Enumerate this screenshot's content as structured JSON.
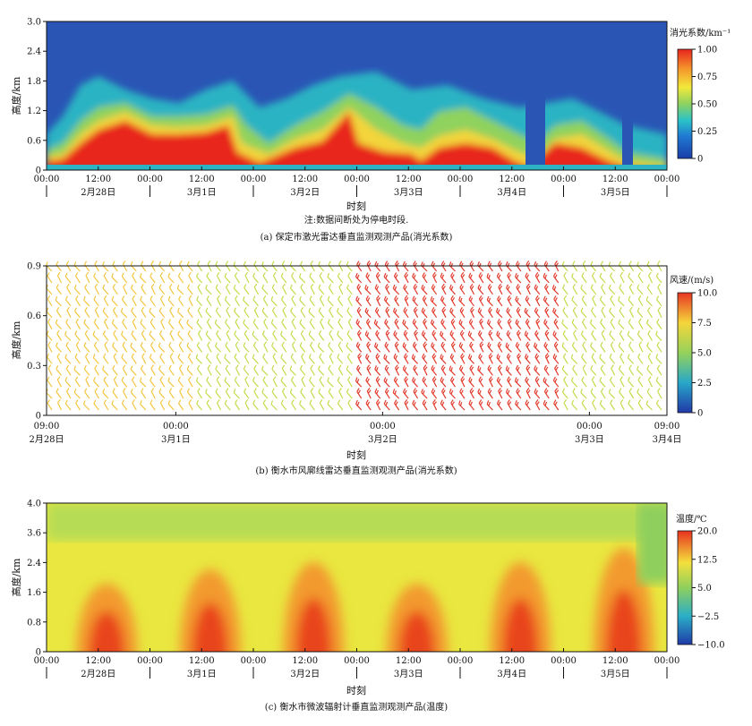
{
  "chart_data": [
    {
      "type": "heatmap",
      "panel": "a",
      "ylabel": "高度/km",
      "xlabel": "时刻",
      "caption": "(a)  保定市激光雷达垂直监测观测产品(消光系数)",
      "note": "注:数据间断处为停电时段.",
      "colorbar_title": "消光系数/km⁻¹",
      "colorbar_ticks": [
        "1.00",
        "0.75",
        "0.50",
        "0.25",
        "0"
      ],
      "ylim": [
        0,
        3.0
      ],
      "y_ticks": [
        "3.0",
        "2.4",
        "1.8",
        "1.2",
        "0.6",
        "0"
      ],
      "x_ticks": [
        "00:00",
        "12:00",
        "00:00",
        "12:00",
        "00:00",
        "12:00",
        "00:00",
        "12:00",
        "00:00",
        "12:00",
        "00:00",
        "12:00",
        "00:00"
      ],
      "dates": [
        "2月28日",
        "3月1日",
        "3月2日",
        "3月3日",
        "3月4日",
        "3月5日"
      ],
      "time_range_hours": [
        0,
        144
      ],
      "data_gaps_hours": [
        [
          112.5,
          116.5
        ],
        [
          134.5,
          137.0
        ],
        [
          141.5,
          144
        ]
      ],
      "boundary_layer_top_km": [
        {
          "hour": 0,
          "value": 0.3
        },
        {
          "hour": 8,
          "value": 0.8
        },
        {
          "hour": 14,
          "value": 1.3
        },
        {
          "hour": 22,
          "value": 1.1
        },
        {
          "hour": 30,
          "value": 0.6
        },
        {
          "hour": 38,
          "value": 1.2
        },
        {
          "hour": 46,
          "value": 0.4
        },
        {
          "hour": 60,
          "value": 0.8
        },
        {
          "hour": 70,
          "value": 1.3
        },
        {
          "hour": 82,
          "value": 0.6
        },
        {
          "hour": 94,
          "value": 0.9
        },
        {
          "hour": 108,
          "value": 0.4
        },
        {
          "hour": 120,
          "value": 0.8
        },
        {
          "hour": 132,
          "value": 0.5
        }
      ]
    },
    {
      "type": "wind_barbs",
      "panel": "b",
      "ylabel": "高度/km",
      "xlabel": "时刻",
      "caption": "(b)  衡水市风廓线雷达垂直监测观测产品(消光系数)",
      "colorbar_title": "风速/(m/s)",
      "colorbar_ticks": [
        "10.0",
        "7.5",
        "5.0",
        "2.5",
        "0"
      ],
      "ylim": [
        0,
        0.9
      ],
      "y_ticks": [
        "0.9",
        "0.6",
        "0.3",
        "0"
      ],
      "x_ticks": [
        {
          "time": "09:00",
          "date": "2月28日"
        },
        {
          "time": "00:00",
          "date": "3月1日"
        },
        {
          "time": "00:00",
          "date": "3月2日"
        },
        {
          "time": "00:00",
          "date": "3月3日"
        },
        {
          "time": "09:00",
          "date": "3月4日"
        }
      ],
      "time_range_hours": [
        0,
        72
      ],
      "wind_speed_regimes": [
        {
          "from_hour": 0,
          "to_hour": 18,
          "speed_ms": 6.5
        },
        {
          "from_hour": 18,
          "to_hour": 36,
          "speed_ms": 5.0
        },
        {
          "from_hour": 36,
          "to_hour": 60,
          "speed_ms": 9.5
        },
        {
          "from_hour": 60,
          "to_hour": 72,
          "speed_ms": 4.5
        }
      ]
    },
    {
      "type": "heatmap",
      "panel": "c",
      "ylabel": "高度/km",
      "xlabel": "时刻",
      "caption": "(c)  衡水市微波辐射计垂直监测观测产品(温度)",
      "colorbar_title": "温度/℃",
      "colorbar_ticks": [
        "20.0",
        "12.5",
        "5.0",
        "−2.5",
        "−10.0"
      ],
      "ylim": [
        0,
        4.0
      ],
      "y_ticks": [
        "4.0",
        "3.6",
        "2.4",
        "1.6",
        "0.8",
        "0"
      ],
      "x_ticks": [
        "00:00",
        "12:00",
        "00:00",
        "12:00",
        "00:00",
        "12:00",
        "00:00",
        "12:00",
        "00:00",
        "12:00",
        "00:00",
        "12:00",
        "00:00"
      ],
      "dates": [
        "2月28日",
        "3月1日",
        "3月2日",
        "3月3日",
        "3月4日",
        "3月5日"
      ],
      "time_range_hours": [
        0,
        144
      ],
      "daily_max_temp_c": [
        {
          "hour": 14,
          "value": 14
        },
        {
          "hour": 38,
          "value": 16
        },
        {
          "hour": 62,
          "value": 17
        },
        {
          "hour": 86,
          "value": 14
        },
        {
          "hour": 110,
          "value": 17
        },
        {
          "hour": 134,
          "value": 19
        }
      ]
    }
  ],
  "colors": {
    "jet": [
      "#00007f",
      "#0000ff",
      "#00a0ff",
      "#00ffff",
      "#7fff7f",
      "#ffff00",
      "#ff7f00",
      "#ff0000",
      "#7f0000"
    ],
    "axis": "#111111"
  }
}
